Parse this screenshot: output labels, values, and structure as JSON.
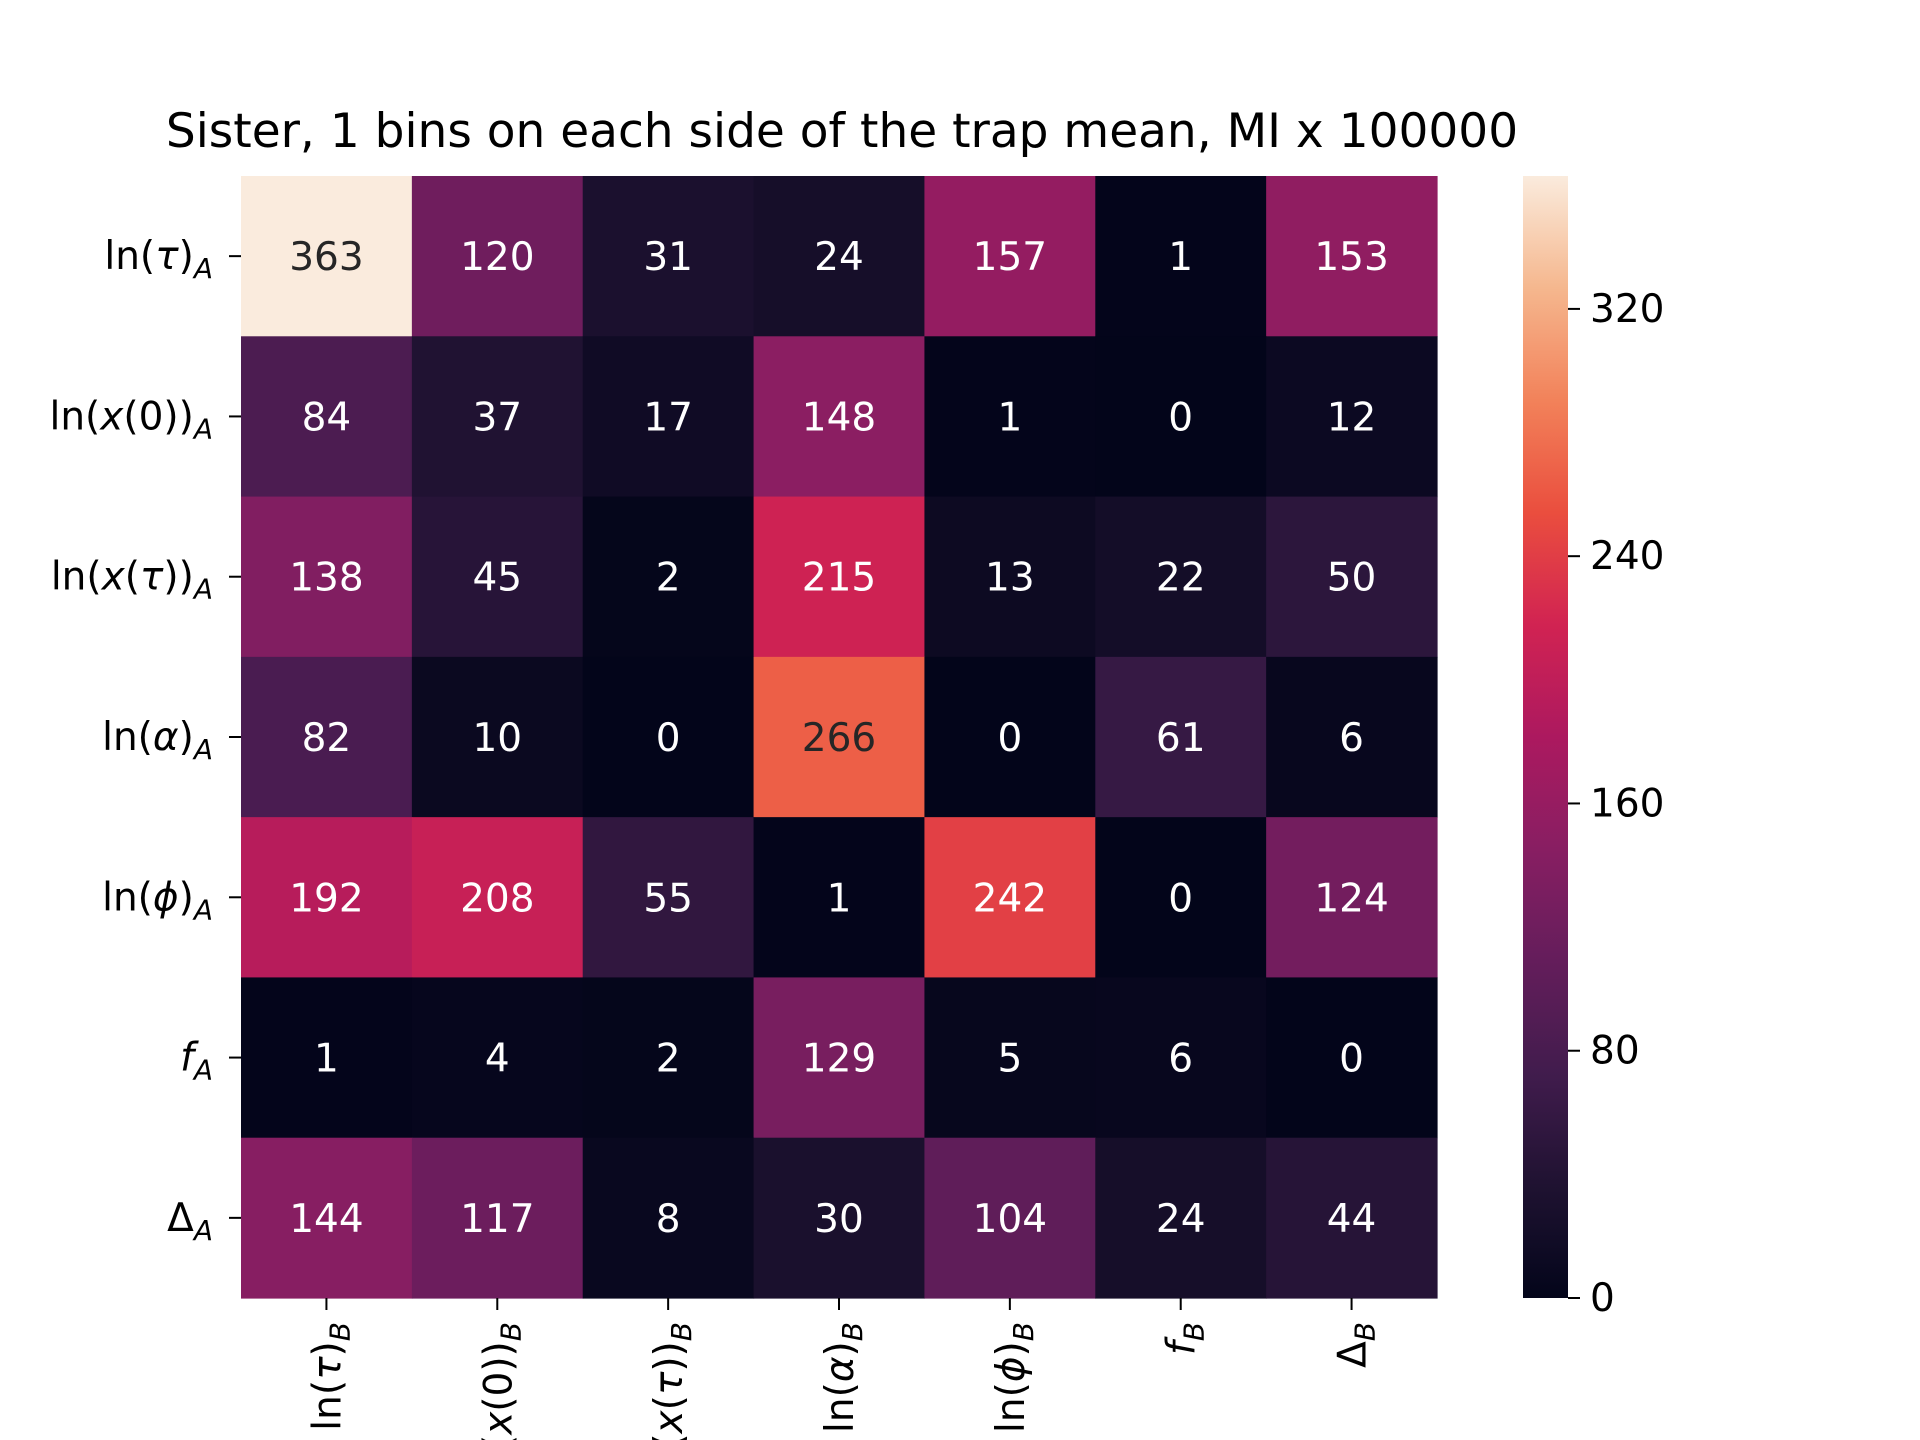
{
  "chart_data": {
    "type": "heatmap",
    "title": "Sister, 1 bins on each side of the trap mean, MI x 100000",
    "xlabel": "",
    "ylabel": "",
    "x_tick_labels": [
      {
        "main": "ln(",
        "sym": "τ",
        "tail": ")",
        "sub": "B"
      },
      {
        "main": "ln(",
        "sym": "x",
        "tail": "(0))",
        "sub": "B"
      },
      {
        "main": "ln(",
        "sym": "x",
        "tail": "(",
        "sym2": "τ",
        "tail2": "))",
        "sub": "B"
      },
      {
        "main": "ln(",
        "sym": "α",
        "tail": ")",
        "sub": "B"
      },
      {
        "main": "ln(",
        "sym": "ϕ",
        "tail": ")",
        "sub": "B"
      },
      {
        "main": "",
        "sym": "f",
        "tail": "",
        "sub": "B"
      },
      {
        "main": "Δ",
        "sym": "",
        "tail": "",
        "sub": "B"
      }
    ],
    "y_tick_labels": [
      {
        "main": "ln(",
        "sym": "τ",
        "tail": ")",
        "sub": "A"
      },
      {
        "main": "ln(",
        "sym": "x",
        "tail": "(0))",
        "sub": "A"
      },
      {
        "main": "ln(",
        "sym": "x",
        "tail": "(",
        "sym2": "τ",
        "tail2": "))",
        "sub": "A"
      },
      {
        "main": "ln(",
        "sym": "α",
        "tail": ")",
        "sub": "A"
      },
      {
        "main": "ln(",
        "sym": "ϕ",
        "tail": ")",
        "sub": "A"
      },
      {
        "main": "",
        "sym": "f",
        "tail": "",
        "sub": "A"
      },
      {
        "main": "Δ",
        "sym": "",
        "tail": "",
        "sub": "A"
      }
    ],
    "values": [
      [
        363,
        120,
        31,
        24,
        157,
        1,
        153
      ],
      [
        84,
        37,
        17,
        148,
        1,
        0,
        12
      ],
      [
        138,
        45,
        2,
        215,
        13,
        22,
        50
      ],
      [
        82,
        10,
        0,
        266,
        0,
        61,
        6
      ],
      [
        192,
        208,
        55,
        1,
        242,
        0,
        124
      ],
      [
        1,
        4,
        2,
        129,
        5,
        6,
        0
      ],
      [
        144,
        117,
        8,
        30,
        104,
        24,
        44
      ]
    ],
    "colorbar": {
      "min": 0,
      "max": 363,
      "ticks": [
        0,
        80,
        160,
        240,
        320
      ],
      "colormap": "rocket"
    },
    "grid": false
  }
}
